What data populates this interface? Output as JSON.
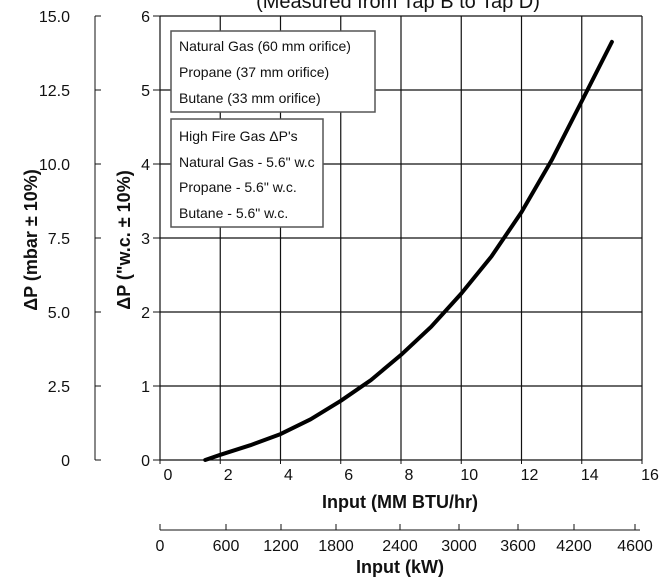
{
  "chart_data": {
    "type": "line",
    "title": "(Measured from Tap B to Tap D)",
    "xlabel": "Input (MM BTU/hr)",
    "x2label": "Input (kW)",
    "ylabel_right": "ΔP (\"w.c.  ± 10%)",
    "ylabel_left": "ΔP (mbar  ± 10%)",
    "xlim": [
      0,
      16
    ],
    "ylim": [
      0,
      6
    ],
    "xticks": [
      "0",
      "2",
      "4",
      "6",
      "8",
      "10",
      "12",
      "14",
      "16"
    ],
    "yticks": [
      "0",
      "1",
      "2",
      "3",
      "4",
      "5",
      "6"
    ],
    "mbar_ticks": [
      "0",
      "2.5",
      "5.0",
      "7.5",
      "10.0",
      "12.5",
      "15.0"
    ],
    "kw_ticks": [
      "0",
      "600",
      "1200",
      "1800",
      "2400",
      "3000",
      "3600",
      "4200",
      "4600"
    ],
    "grid": true,
    "legend_top": [
      "Natural Gas (60 mm orifice)",
      "Propane (37 mm orifice)",
      "Butane (33 mm orifice)"
    ],
    "legend_bottom": [
      "High Fire Gas ΔP's",
      "Natural Gas - 5.6\" w.c",
      "Propane - 5.6\" w.c.",
      "Butane - 5.6\" w.c."
    ],
    "series": [
      {
        "x": [
          1.5,
          2,
          3,
          4,
          5,
          6,
          7,
          8,
          9,
          10,
          11,
          12,
          13,
          14,
          15
        ],
        "values": [
          0.0,
          0.07,
          0.2,
          0.35,
          0.55,
          0.8,
          1.08,
          1.42,
          1.8,
          2.25,
          2.75,
          3.35,
          4.05,
          4.85,
          5.65
        ]
      }
    ]
  }
}
